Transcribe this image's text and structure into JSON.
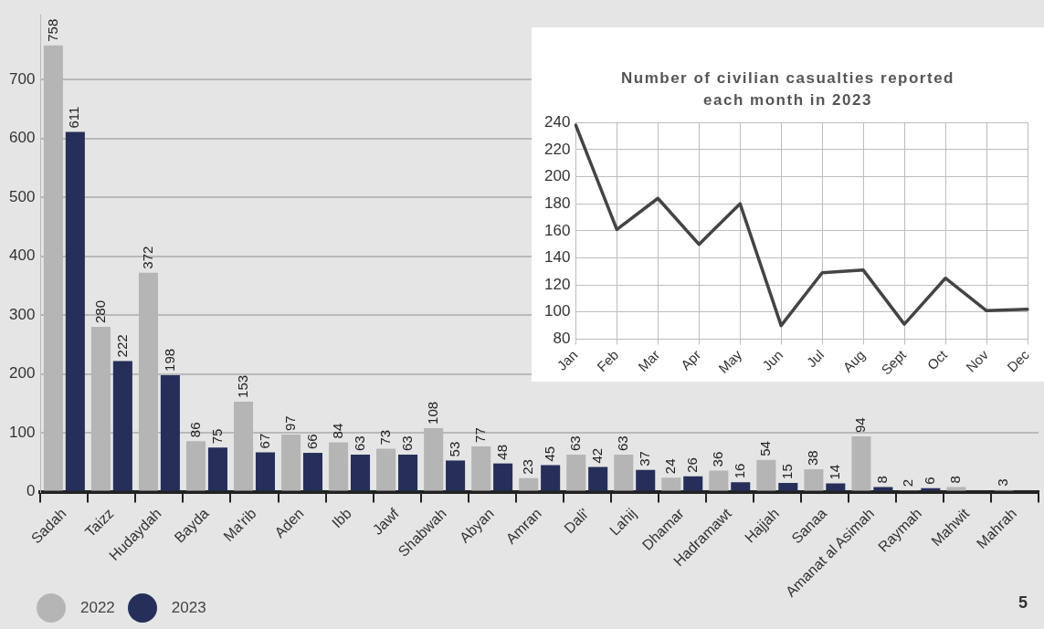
{
  "chart_data": [
    {
      "type": "bar",
      "categories": [
        "Sadah",
        "Taizz",
        "Hudaydah",
        "Bayda",
        "Ma'rib",
        "Aden",
        "Ibb",
        "Jawf",
        "Shabwah",
        "Abyan",
        "Amran",
        "Dali'",
        "Lahij",
        "Dhamar",
        "Hadramawt",
        "Hajjah",
        "Sanaa",
        "Amanat al Asimah",
        "Raymah",
        "Mahwit",
        "Mahrah"
      ],
      "series": [
        {
          "name": "2022",
          "color": "#b5b5b5",
          "values": [
            758,
            280,
            372,
            86,
            153,
            97,
            84,
            73,
            108,
            77,
            23,
            63,
            63,
            24,
            36,
            54,
            38,
            94,
            2,
            8,
            3
          ]
        },
        {
          "name": "2023",
          "color": "#252f5a",
          "values": [
            611,
            222,
            198,
            75,
            67,
            66,
            63,
            63,
            53,
            48,
            45,
            42,
            37,
            26,
            16,
            15,
            14,
            8,
            6,
            null,
            null
          ]
        }
      ],
      "ylim": [
        0,
        810
      ],
      "yticks": [
        0,
        100,
        200,
        300,
        400,
        500,
        600,
        700
      ],
      "grid": "y",
      "legend": "bottom left",
      "data_labels": true,
      "annotations": [
        "5"
      ]
    },
    {
      "type": "line",
      "title": "Number of civilian casualties reported each month in 2023",
      "categories": [
        "Jan",
        "Feb",
        "Mar",
        "Apr",
        "May",
        "Jun",
        "Jul",
        "Aug",
        "Sept",
        "Oct",
        "Nov",
        "Dec"
      ],
      "series": [
        {
          "color": "#444444",
          "values": [
            238,
            161,
            184,
            150,
            180,
            90,
            129,
            131,
            91,
            125,
            101,
            102
          ]
        }
      ],
      "ylim": [
        80,
        240
      ],
      "yticks": [
        80,
        100,
        120,
        140,
        160,
        180,
        200,
        220,
        240
      ],
      "grid": true,
      "marker": "none",
      "line_style": "solid"
    }
  ]
}
